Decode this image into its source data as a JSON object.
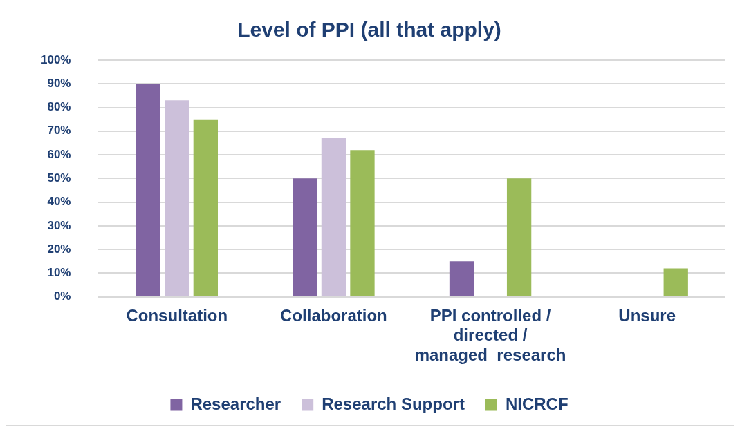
{
  "chart_data": {
    "type": "bar",
    "title": "Level of PPI (all that apply)",
    "categories": [
      "Consultation",
      "Collaboration",
      "PPI controlled / directed / managed  research",
      "Unsure"
    ],
    "series": [
      {
        "name": "Researcher",
        "color": "#8064a2",
        "values": [
          90,
          50,
          15,
          0
        ]
      },
      {
        "name": "Research Support",
        "color": "#ccc0da",
        "values": [
          83,
          67,
          0,
          0
        ]
      },
      {
        "name": "NICRCF",
        "color": "#9bbb59",
        "values": [
          75,
          62,
          50,
          12
        ]
      }
    ],
    "ylim": [
      0,
      100
    ],
    "yticks": [
      {
        "value": 0,
        "label": "0%"
      },
      {
        "value": 10,
        "label": "10%"
      },
      {
        "value": 20,
        "label": "20%"
      },
      {
        "value": 30,
        "label": "30%"
      },
      {
        "value": 40,
        "label": "40%"
      },
      {
        "value": 50,
        "label": "50%"
      },
      {
        "value": 60,
        "label": "60%"
      },
      {
        "value": 70,
        "label": "70%"
      },
      {
        "value": 80,
        "label": "80%"
      },
      {
        "value": 90,
        "label": "90%"
      },
      {
        "value": 100,
        "label": "100%"
      }
    ],
    "grid": "y",
    "legend": "bottom"
  }
}
